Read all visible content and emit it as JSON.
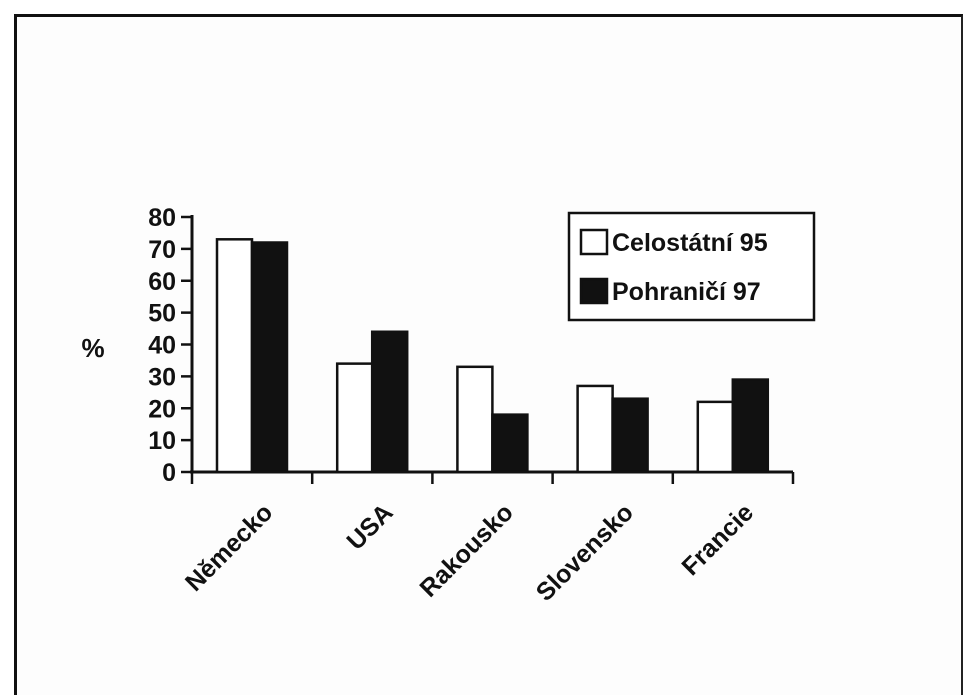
{
  "chart_data": {
    "type": "bar",
    "title": "",
    "xlabel": "",
    "ylabel": "%",
    "ylim": [
      0,
      80
    ],
    "yticks": [
      0,
      10,
      20,
      30,
      40,
      50,
      60,
      70,
      80
    ],
    "categories": [
      "Německo",
      "USA",
      "Rakousko",
      "Slovensko",
      "Francie"
    ],
    "series": [
      {
        "name": "Celostátní 95",
        "values": [
          73,
          34,
          33,
          27,
          22
        ],
        "color": "#ffffff"
      },
      {
        "name": "Pohraničí 97",
        "values": [
          72,
          44,
          18,
          23,
          29
        ],
        "color": "#111111"
      }
    ],
    "legend_position": "top-right",
    "grid": false
  }
}
